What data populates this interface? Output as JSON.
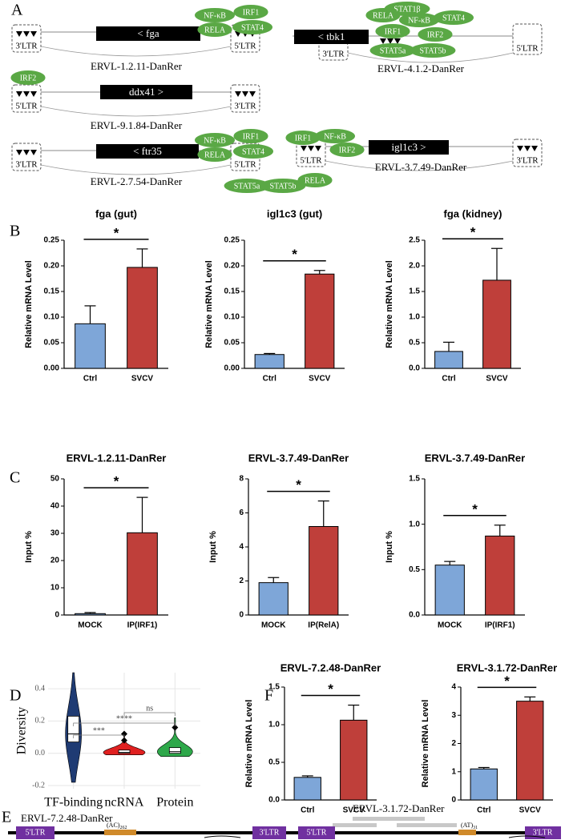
{
  "panel_labels": [
    "A",
    "B",
    "C",
    "D",
    "F",
    "E"
  ],
  "panel_a": {
    "diagrams": [
      {
        "name": "ERVL-1.2.11-DanRer",
        "gene": "< fga",
        "ltrs": [
          "3'LTR",
          "5'LTR"
        ],
        "factors": [
          "NF-κB",
          "IRF1",
          "RELA",
          "STAT4"
        ]
      },
      {
        "name": "ERVL-4.1.2-DanRer",
        "gene": "< tbk1",
        "ltrs": [
          "3'LTR",
          "5'LTR"
        ],
        "factors": [
          "STAT1β",
          "RELA",
          "NF-κB",
          "STAT4",
          "IRF1",
          "IRF2",
          "STAT5a",
          "STAT5b"
        ]
      },
      {
        "name": "ERVL-9.1.84-DanRer",
        "gene": "ddx41 >",
        "ltrs": [
          "5'LTR",
          "3'LTR"
        ],
        "factors": [
          "IRF2"
        ]
      },
      {
        "name": "ERVL-2.7.54-DanRer",
        "gene": "< ftr35",
        "ltrs": [
          "3'LTR",
          "5'LTR"
        ],
        "factors": [
          "NF-κB",
          "IRF1",
          "RELA",
          "STAT4",
          "STAT5a",
          "STAT5b"
        ]
      },
      {
        "name": "ERVL-3.7.49-DanRer",
        "gene": "igl1c3 >",
        "ltrs": [
          "5'LTR",
          "3'LTR"
        ],
        "factors": [
          "IRF1",
          "NF-κB",
          "IRF2",
          "RELA"
        ]
      }
    ]
  },
  "chart_data": [
    {
      "type": "bar",
      "title": "fga (gut)",
      "y_label": "Relative mRNA Level",
      "categories": [
        "Ctrl",
        "SVCV"
      ],
      "values": [
        0.087,
        0.197
      ],
      "errors": [
        0.035,
        0.036
      ],
      "colors": [
        "#7ea6d8",
        "#bf3f3a"
      ],
      "ylim": [
        0,
        0.25
      ],
      "yticks": [
        {
          "value": 0,
          "label": "0.00"
        },
        0.05,
        {
          "value": 0.1,
          "label": "0.10"
        },
        0.15,
        {
          "value": 0.2,
          "label": "0.20"
        },
        0.25
      ],
      "significance": "*"
    },
    {
      "type": "bar",
      "title": "igl1c3 (gut)",
      "y_label": "Relative mRNA Level",
      "categories": [
        "Ctrl",
        "SVCV"
      ],
      "values": [
        0.027,
        0.184
      ],
      "errors": [
        0.002,
        0.007
      ],
      "colors": [
        "#7ea6d8",
        "#bf3f3a"
      ],
      "ylim": [
        0,
        0.25
      ],
      "yticks": [
        {
          "value": 0,
          "label": "0.00"
        },
        0.05,
        {
          "value": 0.1,
          "label": "0.10"
        },
        0.15,
        {
          "value": 0.2,
          "label": "0.20"
        },
        0.25
      ],
      "significance": "*"
    },
    {
      "type": "bar",
      "title": "fga (kidney)",
      "y_label": "Relative mRNA Level",
      "categories": [
        "Ctrl",
        "SVCV"
      ],
      "values": [
        0.33,
        1.72
      ],
      "errors": [
        0.18,
        0.62
      ],
      "colors": [
        "#7ea6d8",
        "#bf3f3a"
      ],
      "ylim": [
        0,
        2.5
      ],
      "yticks": [
        {
          "value": 0,
          "label": "0.0"
        },
        0.5,
        {
          "value": 1,
          "label": "1.0"
        },
        1.5,
        {
          "value": 2,
          "label": "2.0"
        },
        2.5
      ],
      "significance": "*"
    },
    {
      "type": "bar",
      "title": "ERVL-1.2.11-DanRer",
      "y_label": "Input %",
      "categories": [
        "MOCK",
        "IP(IRF1)"
      ],
      "values": [
        0.5,
        30.2
      ],
      "errors": [
        0.4,
        13
      ],
      "colors": [
        "#7ea6d8",
        "#bf3f3a"
      ],
      "ylim": [
        0,
        50
      ],
      "yticks": [
        0,
        10,
        20,
        30,
        40,
        50
      ],
      "significance": "*"
    },
    {
      "type": "bar",
      "title": "ERVL-3.7.49-DanRer",
      "y_label": "Input %",
      "categories": [
        "MOCK",
        "IP(RelA)"
      ],
      "values": [
        1.9,
        5.2
      ],
      "errors": [
        0.3,
        1.5
      ],
      "colors": [
        "#7ea6d8",
        "#bf3f3a"
      ],
      "ylim": [
        0,
        8
      ],
      "yticks": [
        0,
        2,
        4,
        6,
        8
      ],
      "significance": "*"
    },
    {
      "type": "bar",
      "title": "ERVL-3.7.49-DanRer",
      "y_label": "Input %",
      "categories": [
        "MOCK",
        "IP(IRF1)"
      ],
      "values": [
        0.55,
        0.87
      ],
      "errors": [
        0.04,
        0.12
      ],
      "colors": [
        "#7ea6d8",
        "#bf3f3a"
      ],
      "ylim": [
        0,
        1.5
      ],
      "yticks": [
        {
          "value": 0,
          "label": "0.0"
        },
        0.5,
        {
          "value": 1,
          "label": "1.0"
        },
        1.5
      ],
      "significance": "*"
    },
    {
      "type": "bar",
      "title": "ERVL-7.2.48-DanRer",
      "y_label": "Relative mRNA Level",
      "categories": [
        "Ctrl",
        "SVCV"
      ],
      "values": [
        0.3,
        1.06
      ],
      "errors": [
        0.02,
        0.2
      ],
      "colors": [
        "#7ea6d8",
        "#bf3f3a"
      ],
      "ylim": [
        0,
        1.5
      ],
      "yticks": [
        {
          "value": 0,
          "label": "0.0"
        },
        0.5,
        {
          "value": 1,
          "label": "1.0"
        },
        1.5
      ],
      "significance": "*"
    },
    {
      "type": "bar",
      "title": "ERVL-3.1.72-DanRer",
      "y_label": "Relative mRNA Level",
      "categories": [
        "Ctrl",
        "SVCV"
      ],
      "values": [
        1.1,
        3.5
      ],
      "errors": [
        0.05,
        0.15
      ],
      "colors": [
        "#7ea6d8",
        "#bf3f3a"
      ],
      "ylim": [
        0,
        4
      ],
      "yticks": [
        0,
        1,
        2,
        3,
        4
      ],
      "significance": "*"
    },
    {
      "type": "violin",
      "y_label": "Diversity",
      "categories": [
        "TF-binding",
        "ncRNA",
        "Protein"
      ],
      "min": [
        -0.18,
        -0.01,
        -0.02
      ],
      "q1": [
        0.07,
        0,
        0
      ],
      "median": [
        0.12,
        0.005,
        0.01
      ],
      "q3": [
        0.23,
        0.02,
        0.035
      ],
      "max": [
        0.5,
        0.12,
        0.22
      ],
      "outliers": [
        [],
        [
          0.12,
          0.08
        ],
        [
          0.16
        ]
      ],
      "colors": [
        "#1f3b73",
        "#e02020",
        "#2ea84a"
      ],
      "ylim": [
        -0.22,
        0.5
      ],
      "yticks": [
        -0.2,
        {
          "value": 0,
          "label": "0.0"
        },
        0.2,
        0.4
      ],
      "grid": true,
      "significance": [
        "***",
        "****",
        "ns"
      ]
    }
  ],
  "panel_e": {
    "left": {
      "name": "ERVL-7.2.48-DanRer",
      "ltrs": [
        "5'LTR",
        "3'LTR"
      ],
      "repeat": "(AC)",
      "repeat_count": "262"
    },
    "right": {
      "name": "ERVL-3.1.72-DanRer",
      "ltrs": [
        "5'LTR",
        "3'LTR"
      ],
      "repeat": "(AT)",
      "repeat_count": "31"
    }
  }
}
